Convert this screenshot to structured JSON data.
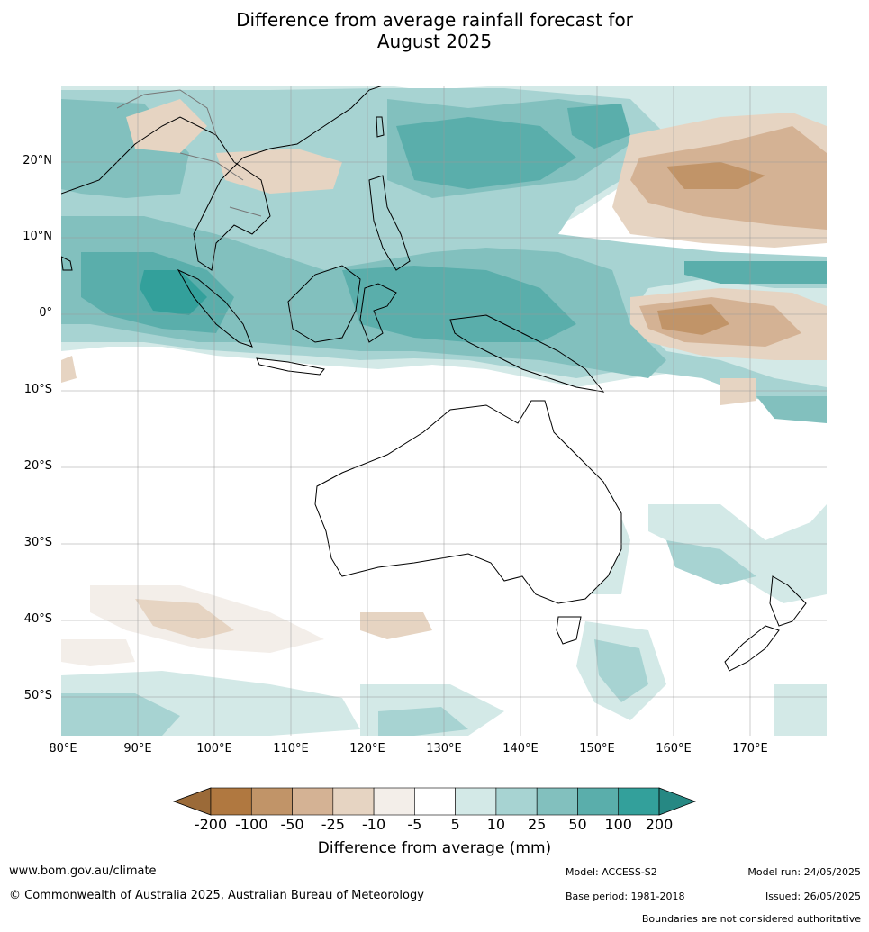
{
  "title_line1": "Difference from average rainfall forecast for",
  "title_line2": "August 2025",
  "latitude_labels": [
    "20°N",
    "10°N",
    "0°",
    "10°S",
    "20°S",
    "30°S",
    "40°S",
    "50°S"
  ],
  "longitude_labels": [
    "80°E",
    "90°E",
    "100°E",
    "110°E",
    "120°E",
    "130°E",
    "140°E",
    "150°E",
    "160°E",
    "170°E"
  ],
  "colorbar": {
    "ticks": [
      "-200",
      "-100",
      "-50",
      "-25",
      "-10",
      "-5",
      "5",
      "10",
      "25",
      "50",
      "100",
      "200"
    ],
    "colors": [
      "#9b6a38",
      "#b07840",
      "#c19468",
      "#d4b294",
      "#e6d4c2",
      "#f3eee9",
      "#ffffff",
      "#d3e9e7",
      "#a7d3d2",
      "#82c0be",
      "#5aaeab",
      "#33a09b",
      "#268883"
    ],
    "label": "Difference from average (mm)"
  },
  "footer": {
    "website": "www.bom.gov.au/climate",
    "copyright": "© Commonwealth of Australia 2025, Australian Bureau of Meteorology",
    "model": "Model: ACCESS-S2",
    "base_period": "Base period: 1981-2018",
    "model_run": "Model run: 24/05/2025",
    "issued": "Issued: 26/05/2025",
    "boundaries_note": "Boundaries are not considered authoritative"
  }
}
